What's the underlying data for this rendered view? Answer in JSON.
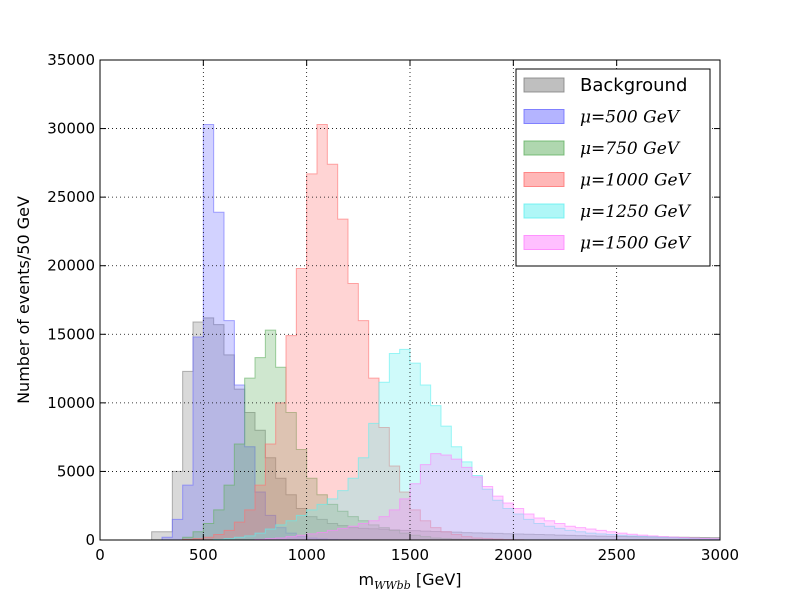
{
  "chart_data": {
    "type": "bar",
    "xlabel_main": "m",
    "xlabel_sub": "WWbb",
    "xlabel_unit": " [GeV]",
    "ylabel_main": "Number of events",
    "ylabel_unit": "/50 GeV",
    "xlim": [
      0,
      3000
    ],
    "ylim": [
      0,
      35000
    ],
    "xticks": [
      0,
      500,
      1000,
      1500,
      2000,
      2500,
      3000
    ],
    "yticks": [
      0,
      5000,
      10000,
      15000,
      20000,
      25000,
      30000,
      35000
    ],
    "grid": true,
    "legend_position": "top-right",
    "bin_width": 50,
    "bin_start": 0,
    "series": [
      {
        "name": "Background",
        "color": "#808080",
        "values": [
          0,
          0,
          0,
          0,
          0,
          600,
          600,
          5000,
          12300,
          15900,
          16200,
          15700,
          13500,
          11000,
          9300,
          8000,
          6000,
          4500,
          3300,
          2300,
          1700,
          1500,
          1200,
          1050,
          900,
          850,
          820,
          780,
          740,
          700,
          680,
          650,
          620,
          600,
          570,
          540,
          520,
          500,
          480,
          460,
          440,
          420,
          400,
          380,
          360,
          340,
          320,
          300,
          280,
          270,
          260,
          250,
          240,
          230,
          220,
          210,
          200,
          190,
          180,
          170
        ]
      },
      {
        "name": "μ=500 GeV",
        "color": "#6a6aff",
        "values": [
          0,
          0,
          0,
          0,
          0,
          0,
          200,
          1500,
          4000,
          14800,
          30300,
          23900,
          16000,
          11300,
          6800,
          3500,
          1800,
          900,
          500,
          250,
          150,
          80,
          50,
          30,
          20,
          10,
          0,
          0,
          0,
          0,
          0,
          0,
          0,
          0,
          0,
          0,
          0,
          0,
          0,
          0,
          0,
          0,
          0,
          0,
          0,
          0,
          0,
          0,
          0,
          0,
          0,
          0,
          0,
          0,
          0,
          0,
          0,
          0,
          0,
          0
        ]
      },
      {
        "name": "μ=750 GeV",
        "color": "#60b060",
        "values": [
          0,
          0,
          0,
          0,
          0,
          0,
          0,
          0,
          200,
          600,
          1200,
          2200,
          4000,
          7000,
          11800,
          13300,
          15300,
          12600,
          9300,
          6600,
          4500,
          3300,
          2600,
          2100,
          1700,
          1400,
          1100,
          900,
          700,
          500,
          350,
          250,
          150,
          100,
          60,
          40,
          20,
          0,
          0,
          0,
          0,
          0,
          0,
          0,
          0,
          0,
          0,
          0,
          0,
          0,
          0,
          0,
          0,
          0,
          0,
          0,
          0,
          0,
          0,
          0
        ]
      },
      {
        "name": "μ=1000 GeV",
        "color": "#ff7070",
        "values": [
          0,
          0,
          0,
          0,
          0,
          0,
          0,
          0,
          50,
          100,
          200,
          400,
          700,
          1300,
          2200,
          4000,
          7000,
          10000,
          14900,
          19800,
          26700,
          30300,
          27400,
          23400,
          18700,
          16000,
          11800,
          8200,
          5400,
          3500,
          2200,
          1400,
          900,
          600,
          400,
          250,
          150,
          100,
          60,
          40,
          20,
          0,
          0,
          0,
          0,
          0,
          0,
          0,
          0,
          0,
          0,
          0,
          0,
          0,
          0,
          0,
          0,
          0,
          0,
          0
        ]
      },
      {
        "name": "μ=1250 GeV",
        "color": "#5ff0f0",
        "values": [
          0,
          0,
          0,
          0,
          0,
          0,
          0,
          0,
          0,
          0,
          0,
          50,
          100,
          200,
          300,
          500,
          800,
          1100,
          1400,
          1800,
          2200,
          2600,
          3000,
          3600,
          4500,
          6000,
          8500,
          11500,
          13600,
          13900,
          12900,
          11300,
          9800,
          8300,
          6800,
          5700,
          4700,
          3700,
          2900,
          2300,
          1900,
          1500,
          1200,
          1000,
          850,
          700,
          600,
          500,
          450,
          400,
          350,
          300,
          260,
          230,
          200,
          170,
          140,
          110,
          90,
          70
        ]
      },
      {
        "name": "μ=1500 GeV",
        "color": "#ff80ff",
        "values": [
          0,
          0,
          0,
          0,
          0,
          0,
          0,
          0,
          0,
          0,
          0,
          0,
          0,
          0,
          0,
          50,
          100,
          150,
          250,
          350,
          450,
          550,
          700,
          850,
          1000,
          1200,
          1400,
          1700,
          2200,
          3000,
          4100,
          5500,
          6300,
          6200,
          5900,
          5300,
          4600,
          3900,
          3200,
          2700,
          2300,
          1900,
          1600,
          1400,
          1200,
          1000,
          900,
          800,
          700,
          600,
          500,
          420,
          360,
          300,
          250,
          210,
          170,
          140,
          110,
          90
        ]
      }
    ]
  }
}
